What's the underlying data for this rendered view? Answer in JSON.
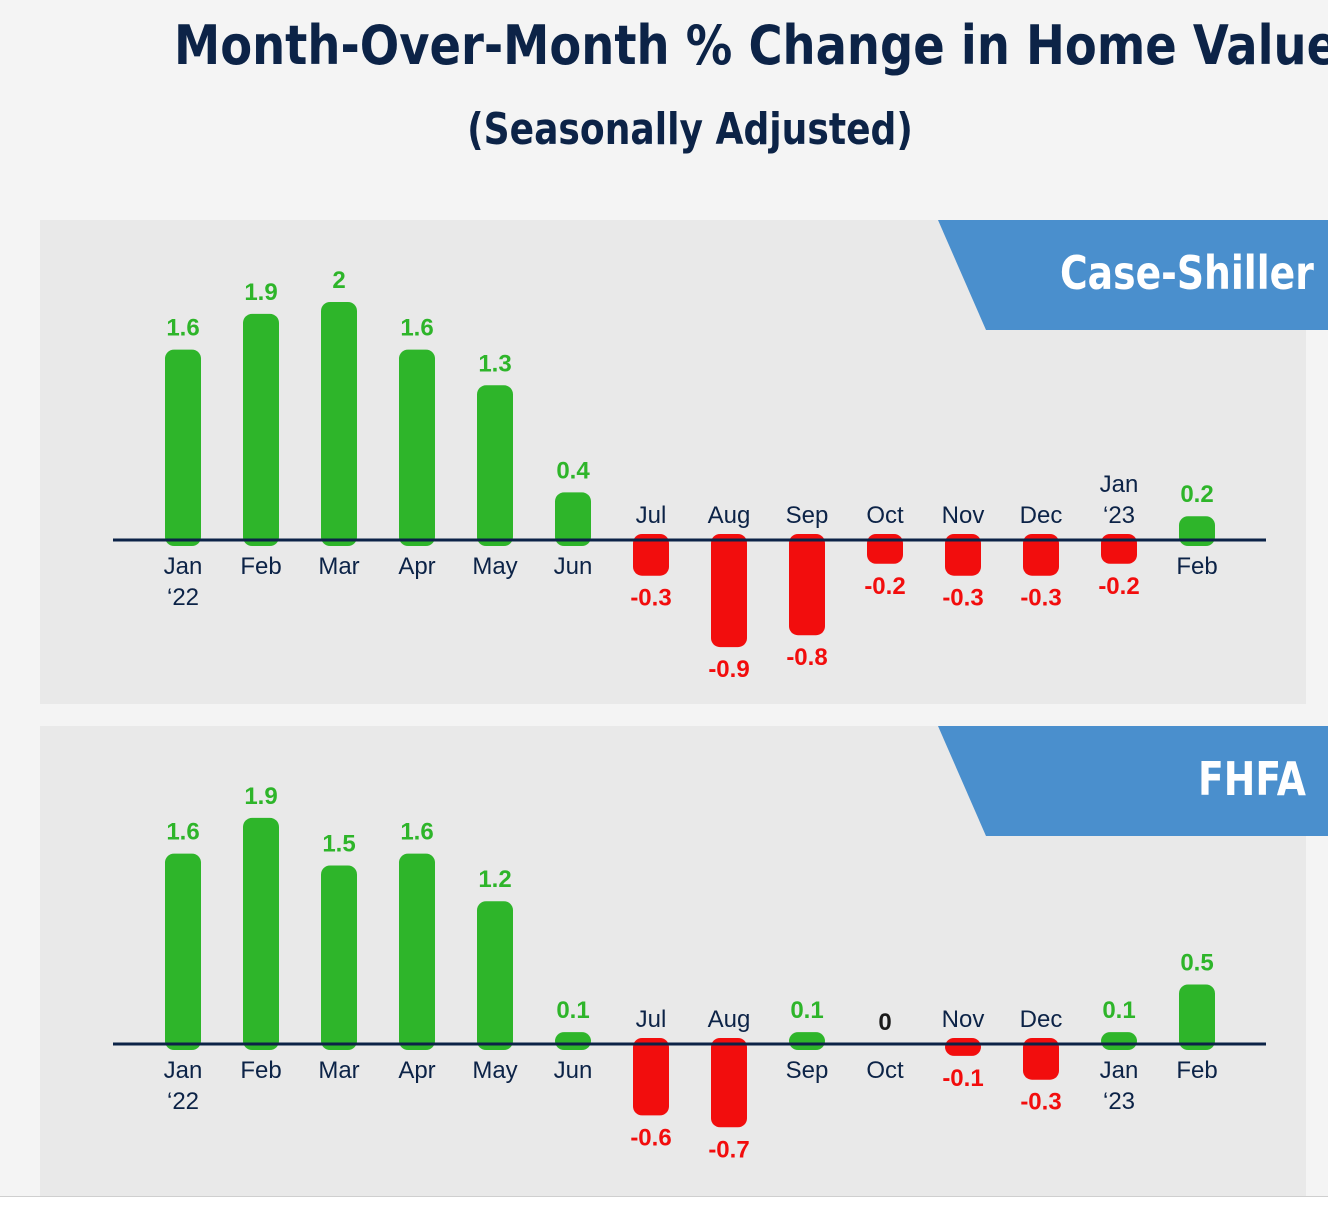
{
  "title": "Month-Over-Month % Change in Home Values",
  "subtitle": "(Seasonally Adjusted)",
  "colors": {
    "positive": "#2eb52a",
    "negative": "#f20d0d",
    "axis": "#0c2347",
    "banner": "#4a8fcd",
    "banner_accent": "#0c2347"
  },
  "chart_data": [
    {
      "type": "bar",
      "title": "Case-Shiller",
      "categories": [
        "Jan ‘22",
        "Feb",
        "Mar",
        "Apr",
        "May",
        "Jun",
        "Jul",
        "Aug",
        "Sep",
        "Oct",
        "Nov",
        "Dec",
        "Jan ‘23",
        "Feb"
      ],
      "values": [
        1.6,
        1.9,
        2,
        1.6,
        1.3,
        0.4,
        -0.3,
        -0.9,
        -0.8,
        -0.2,
        -0.3,
        -0.3,
        -0.2,
        0.2
      ],
      "value_labels": [
        "1.6",
        "1.9",
        "2",
        "1.6",
        "1.3",
        "0.4",
        "-0.3",
        "-0.9",
        "-0.8",
        "-0.2",
        "-0.3",
        "-0.3",
        "-0.2",
        "0.2"
      ],
      "ylim": [
        -1.0,
        2.1
      ]
    },
    {
      "type": "bar",
      "title": "FHFA",
      "categories": [
        "Jan ‘22",
        "Feb",
        "Mar",
        "Apr",
        "May",
        "Jun",
        "Jul",
        "Aug",
        "Sep",
        "Oct",
        "Nov",
        "Dec",
        "Jan ‘23",
        "Feb"
      ],
      "values": [
        1.6,
        1.9,
        1.5,
        1.6,
        1.2,
        0.1,
        -0.6,
        -0.7,
        0.1,
        0,
        -0.1,
        -0.3,
        0.1,
        0.5
      ],
      "value_labels": [
        "1.6",
        "1.9",
        "1.5",
        "1.6",
        "1.2",
        "0.1",
        "-0.6",
        "-0.7",
        "0.1",
        "0",
        "-0.1",
        "-0.3",
        "0.1",
        "0.5"
      ],
      "ylim": [
        -0.8,
        2.0
      ]
    }
  ]
}
